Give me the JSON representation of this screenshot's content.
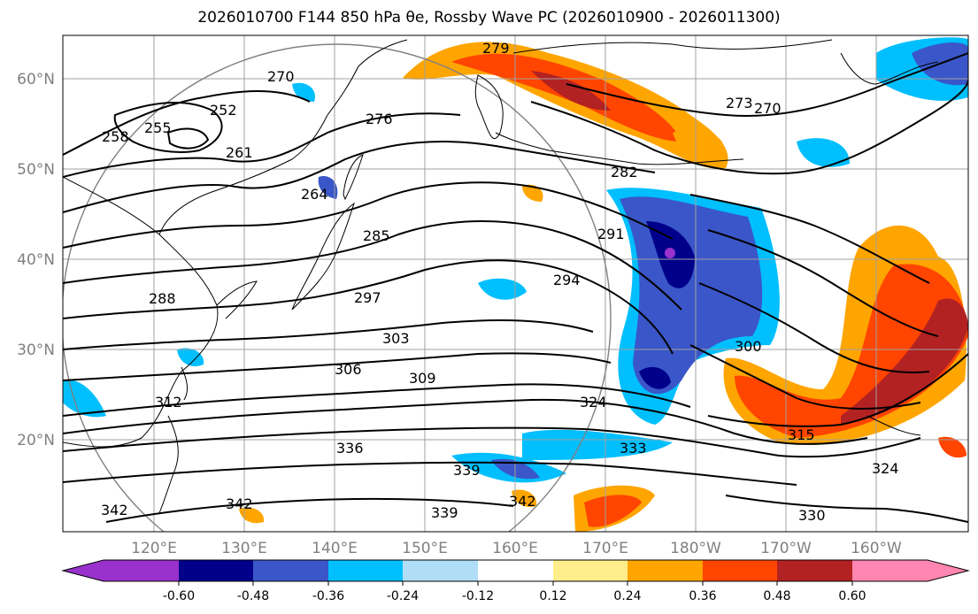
{
  "title": "2026010700 F144 850 hPa θe, Rossby Wave PC (2026010900 - 2026011300)",
  "map": {
    "lon_ticks": [
      "120°E",
      "130°E",
      "140°E",
      "150°E",
      "160°E",
      "170°E",
      "180°W",
      "170°W",
      "160°W"
    ],
    "lat_ticks": [
      "60°N",
      "50°N",
      "40°N",
      "30°N",
      "20°N"
    ],
    "contour_labels": [
      "270",
      "273",
      "276",
      "279",
      "282",
      "285",
      "288",
      "291",
      "294",
      "297",
      "300",
      "303",
      "306",
      "309",
      "312",
      "315",
      "324",
      "330",
      "333",
      "336",
      "339",
      "342",
      "252",
      "255",
      "258",
      "261",
      "264"
    ],
    "colors": {
      "land_outline": "#000000",
      "contour": "#000000",
      "grid": "#a0a0a0",
      "circle": "#808080"
    }
  },
  "colorbar": {
    "labels": [
      "-0.60",
      "-0.48",
      "-0.36",
      "-0.24",
      "-0.12",
      "0.12",
      "0.24",
      "0.36",
      "0.48",
      "0.60"
    ],
    "colors": [
      "#9932CC",
      "#00008B",
      "#3A56C8",
      "#00BFFF",
      "#B0DEF7",
      "#FFFFFF",
      "#FFEC8B",
      "#FFA500",
      "#FF4500",
      "#B22222",
      "#FF86B0"
    ]
  }
}
